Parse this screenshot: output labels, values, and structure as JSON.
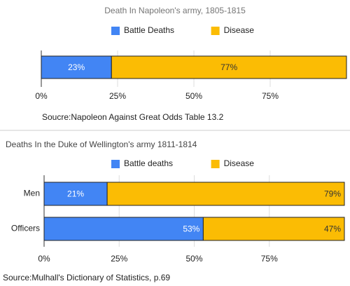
{
  "chart_data": [
    {
      "type": "stacked-bar-horizontal",
      "title": "Death In Napoleon's army, 1805-1815",
      "categories": [
        null
      ],
      "series": [
        {
          "name": "Battle Deaths",
          "color": "#4285f4",
          "values": [
            23
          ],
          "value_labels": [
            "23%"
          ]
        },
        {
          "name": "Disease",
          "color": "#fbbc04",
          "values": [
            77
          ],
          "value_labels": [
            "77%"
          ]
        }
      ],
      "xlim": [
        0,
        100
      ],
      "xticks": [
        {
          "value": 0,
          "label": "0%"
        },
        {
          "value": 25,
          "label": "25%"
        },
        {
          "value": 50,
          "label": "50%"
        },
        {
          "value": 75,
          "label": "75%"
        }
      ],
      "legend": "top",
      "source": "Soucre:Napoleon Against Great Odds Table 13.2"
    },
    {
      "type": "stacked-bar-horizontal",
      "title": "Deaths In the Duke of Wellington's army 1811-1814",
      "categories": [
        "Men",
        "Officers"
      ],
      "series": [
        {
          "name": "Battle deaths",
          "color": "#4285f4",
          "values": [
            21,
            53
          ],
          "value_labels": [
            "21%",
            "53%"
          ]
        },
        {
          "name": "Disease",
          "color": "#fbbc04",
          "values": [
            79,
            47
          ],
          "value_labels": [
            "79%",
            "47%"
          ]
        }
      ],
      "xlim": [
        0,
        100
      ],
      "xticks": [
        {
          "value": 0,
          "label": "0%"
        },
        {
          "value": 25,
          "label": "25%"
        },
        {
          "value": 50,
          "label": "50%"
        },
        {
          "value": 75,
          "label": "75%"
        }
      ],
      "legend": "top",
      "source": "Source:Mulhall's Dictionary of Statistics, p.69"
    }
  ]
}
